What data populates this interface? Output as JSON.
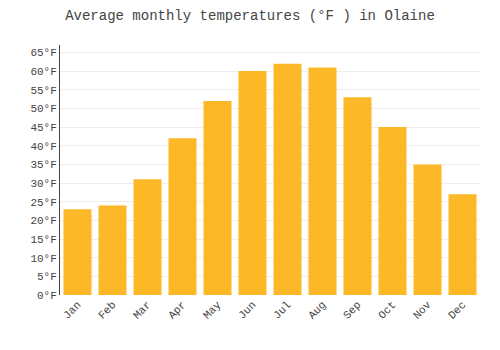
{
  "chart_data": {
    "type": "bar",
    "title": "Average monthly temperatures (°F ) in Olaine",
    "categories": [
      "Jan",
      "Feb",
      "Mar",
      "Apr",
      "May",
      "Jun",
      "Jul",
      "Aug",
      "Sep",
      "Oct",
      "Nov",
      "Dec"
    ],
    "values": [
      23,
      24,
      31,
      42,
      52,
      60,
      62,
      61,
      53,
      45,
      35,
      27
    ],
    "color": "#FDB827",
    "ylim": [
      0,
      67
    ],
    "yticks": [
      {
        "value": 0,
        "label": "0°F"
      },
      {
        "value": 5,
        "label": "5°F"
      },
      {
        "value": 10,
        "label": "10°F"
      },
      {
        "value": 15,
        "label": "15°F"
      },
      {
        "value": 20,
        "label": "20°F"
      },
      {
        "value": 25,
        "label": "25°F"
      },
      {
        "value": 30,
        "label": "30°F"
      },
      {
        "value": 35,
        "label": "35°F"
      },
      {
        "value": 40,
        "label": "40°F"
      },
      {
        "value": 45,
        "label": "45°F"
      },
      {
        "value": 50,
        "label": "50°F"
      },
      {
        "value": 55,
        "label": "55°F"
      },
      {
        "value": 60,
        "label": "60°F"
      },
      {
        "value": 65,
        "label": "65°F"
      }
    ],
    "grid": true
  }
}
